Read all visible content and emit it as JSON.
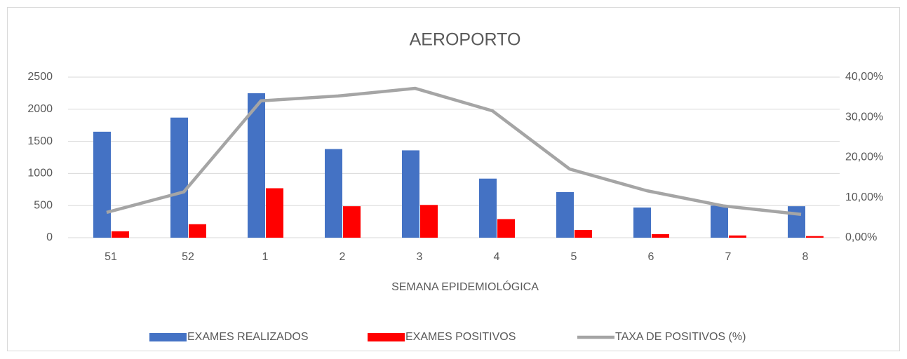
{
  "chart_data": {
    "type": "bar_line",
    "title": "AEROPORTO",
    "x_label": "SEMANA EPIDEMIOLÓGICA",
    "categories": [
      "51",
      "52",
      "1",
      "2",
      "3",
      "4",
      "5",
      "6",
      "7",
      "8"
    ],
    "series": [
      {
        "name": "EXAMES REALIZADOS",
        "type": "bar",
        "color": "#4472c4",
        "values": [
          1650,
          1870,
          2250,
          1380,
          1360,
          920,
          710,
          470,
          500,
          490
        ]
      },
      {
        "name": "EXAMES POSITIVOS",
        "type": "bar",
        "color": "#ff0000",
        "values": [
          100,
          210,
          770,
          490,
          510,
          290,
          120,
          55,
          35,
          25
        ]
      },
      {
        "name": "TAXA DE POSITIVOS (%)",
        "type": "line",
        "axis": "y2",
        "color": "#a5a5a5",
        "values": [
          6.3,
          11.4,
          34.1,
          35.3,
          37.2,
          31.6,
          17.1,
          11.7,
          7.9,
          5.8
        ]
      }
    ],
    "ylim": [
      0,
      2500
    ],
    "yticks": [
      0,
      500,
      1000,
      1500,
      2000,
      2500
    ],
    "y2lim": [
      0,
      40
    ],
    "y2ticks": [
      {
        "value": 0,
        "label": "0,00%"
      },
      {
        "value": 10,
        "label": "10,00%"
      },
      {
        "value": 20,
        "label": "20,00%"
      },
      {
        "value": 30,
        "label": "30,00%"
      },
      {
        "value": 40,
        "label": "40,00%"
      }
    ],
    "grid": true,
    "legend": "bottom"
  }
}
